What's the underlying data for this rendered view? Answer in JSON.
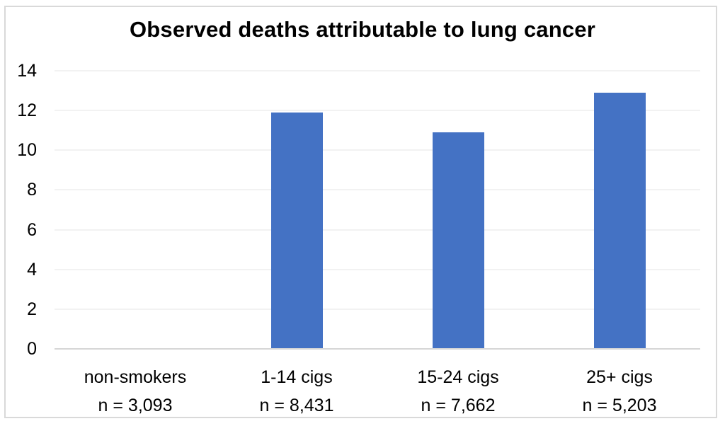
{
  "chart_data": {
    "type": "bar",
    "title": "Observed deaths attributable to lung cancer",
    "categories": [
      "non-smokers",
      "1-14 cigs",
      "15-24 cigs",
      "25+ cigs"
    ],
    "sublabels": [
      "n = 3,093",
      "n = 8,431",
      "n = 7,662",
      "n = 5,203"
    ],
    "values": [
      0,
      11.9,
      10.9,
      12.9
    ],
    "xlabel": "",
    "ylabel": "",
    "ylim": [
      0,
      14
    ],
    "yticks": [
      0,
      2,
      4,
      6,
      8,
      10,
      12,
      14
    ],
    "grid": true,
    "legend": "none",
    "colors": {
      "bar": "#4472c4",
      "gridline": "#f2f2f2",
      "axis_line": "#d6d6d6",
      "frame_border": "#d9d9d9",
      "text": "#000000",
      "background": "#ffffff"
    }
  }
}
